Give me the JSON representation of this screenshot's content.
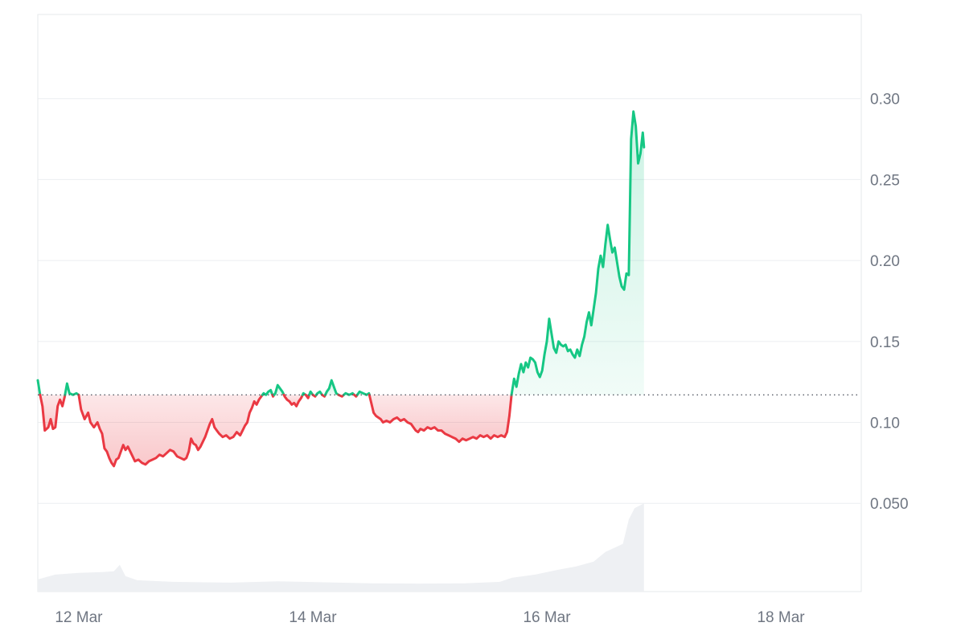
{
  "chart_data": {
    "type": "line",
    "baseline": 0.117,
    "colors": {
      "above": "#16c784",
      "below": "#ea3943",
      "volume": "#eef0f3"
    },
    "y_axis": {
      "ticks": [
        {
          "value": 0.05,
          "label": "0.050"
        },
        {
          "value": 0.1,
          "label": "0.10"
        },
        {
          "value": 0.15,
          "label": "0.15"
        },
        {
          "value": 0.2,
          "label": "0.20"
        },
        {
          "value": 0.25,
          "label": "0.25"
        },
        {
          "value": 0.3,
          "label": "0.30"
        }
      ]
    },
    "x_axis": {
      "ticks": [
        {
          "value": 11.7,
          "label": "12 Mar"
        },
        {
          "value": 13.7,
          "label": "14 Mar"
        },
        {
          "value": 15.7,
          "label": "16 Mar"
        },
        {
          "value": 17.7,
          "label": "18 Mar"
        }
      ]
    },
    "xlim": [
      11.35,
      18.38
    ],
    "ylim": [
      -0.0045,
      0.352
    ],
    "series": [
      {
        "points": [
          [
            11.35,
            0.126
          ],
          [
            11.37,
            0.117
          ],
          [
            11.39,
            0.11
          ],
          [
            11.41,
            0.095
          ],
          [
            11.44,
            0.097
          ],
          [
            11.46,
            0.102
          ],
          [
            11.48,
            0.096
          ],
          [
            11.5,
            0.097
          ],
          [
            11.52,
            0.11
          ],
          [
            11.54,
            0.114
          ],
          [
            11.56,
            0.11
          ],
          [
            11.58,
            0.116
          ],
          [
            11.6,
            0.124
          ],
          [
            11.62,
            0.118
          ],
          [
            11.65,
            0.117
          ],
          [
            11.68,
            0.118
          ],
          [
            11.7,
            0.117
          ],
          [
            11.72,
            0.108
          ],
          [
            11.75,
            0.102
          ],
          [
            11.78,
            0.106
          ],
          [
            11.8,
            0.1
          ],
          [
            11.83,
            0.097
          ],
          [
            11.86,
            0.1
          ],
          [
            11.88,
            0.096
          ],
          [
            11.9,
            0.093
          ],
          [
            11.92,
            0.084
          ],
          [
            11.94,
            0.082
          ],
          [
            11.96,
            0.078
          ],
          [
            11.98,
            0.075
          ],
          [
            12.0,
            0.073
          ],
          [
            12.02,
            0.077
          ],
          [
            12.04,
            0.078
          ],
          [
            12.06,
            0.082
          ],
          [
            12.08,
            0.086
          ],
          [
            12.1,
            0.083
          ],
          [
            12.12,
            0.085
          ],
          [
            12.14,
            0.082
          ],
          [
            12.16,
            0.079
          ],
          [
            12.18,
            0.076
          ],
          [
            12.21,
            0.077
          ],
          [
            12.24,
            0.075
          ],
          [
            12.27,
            0.074
          ],
          [
            12.3,
            0.076
          ],
          [
            12.33,
            0.077
          ],
          [
            12.36,
            0.078
          ],
          [
            12.39,
            0.08
          ],
          [
            12.42,
            0.079
          ],
          [
            12.45,
            0.081
          ],
          [
            12.48,
            0.083
          ],
          [
            12.51,
            0.082
          ],
          [
            12.54,
            0.079
          ],
          [
            12.57,
            0.078
          ],
          [
            12.6,
            0.077
          ],
          [
            12.62,
            0.078
          ],
          [
            12.64,
            0.082
          ],
          [
            12.66,
            0.09
          ],
          [
            12.68,
            0.087
          ],
          [
            12.7,
            0.086
          ],
          [
            12.72,
            0.083
          ],
          [
            12.74,
            0.085
          ],
          [
            12.76,
            0.088
          ],
          [
            12.78,
            0.091
          ],
          [
            12.8,
            0.095
          ],
          [
            12.82,
            0.099
          ],
          [
            12.84,
            0.102
          ],
          [
            12.86,
            0.097
          ],
          [
            12.88,
            0.095
          ],
          [
            12.9,
            0.093
          ],
          [
            12.93,
            0.091
          ],
          [
            12.96,
            0.092
          ],
          [
            12.99,
            0.09
          ],
          [
            13.02,
            0.091
          ],
          [
            13.05,
            0.094
          ],
          [
            13.08,
            0.092
          ],
          [
            13.1,
            0.095
          ],
          [
            13.12,
            0.098
          ],
          [
            13.14,
            0.1
          ],
          [
            13.16,
            0.106
          ],
          [
            13.18,
            0.109
          ],
          [
            13.2,
            0.113
          ],
          [
            13.22,
            0.111
          ],
          [
            13.24,
            0.114
          ],
          [
            13.26,
            0.116
          ],
          [
            13.28,
            0.118
          ],
          [
            13.3,
            0.117
          ],
          [
            13.32,
            0.119
          ],
          [
            13.34,
            0.12
          ],
          [
            13.36,
            0.116
          ],
          [
            13.38,
            0.118
          ],
          [
            13.4,
            0.123
          ],
          [
            13.42,
            0.121
          ],
          [
            13.44,
            0.119
          ],
          [
            13.46,
            0.116
          ],
          [
            13.48,
            0.114
          ],
          [
            13.5,
            0.113
          ],
          [
            13.52,
            0.111
          ],
          [
            13.54,
            0.112
          ],
          [
            13.56,
            0.11
          ],
          [
            13.58,
            0.113
          ],
          [
            13.6,
            0.115
          ],
          [
            13.62,
            0.118
          ],
          [
            13.64,
            0.117
          ],
          [
            13.66,
            0.115
          ],
          [
            13.68,
            0.119
          ],
          [
            13.7,
            0.117
          ],
          [
            13.72,
            0.116
          ],
          [
            13.74,
            0.118
          ],
          [
            13.76,
            0.119
          ],
          [
            13.78,
            0.117
          ],
          [
            13.8,
            0.116
          ],
          [
            13.82,
            0.119
          ],
          [
            13.84,
            0.121
          ],
          [
            13.86,
            0.126
          ],
          [
            13.88,
            0.122
          ],
          [
            13.9,
            0.118
          ],
          [
            13.92,
            0.117
          ],
          [
            13.95,
            0.116
          ],
          [
            13.98,
            0.118
          ],
          [
            14.01,
            0.117
          ],
          [
            14.04,
            0.118
          ],
          [
            14.07,
            0.116
          ],
          [
            14.1,
            0.119
          ],
          [
            14.13,
            0.118
          ],
          [
            14.16,
            0.117
          ],
          [
            14.18,
            0.118
          ],
          [
            14.2,
            0.112
          ],
          [
            14.22,
            0.106
          ],
          [
            14.24,
            0.104
          ],
          [
            14.26,
            0.103
          ],
          [
            14.28,
            0.102
          ],
          [
            14.3,
            0.1
          ],
          [
            14.33,
            0.101
          ],
          [
            14.36,
            0.1
          ],
          [
            14.39,
            0.102
          ],
          [
            14.42,
            0.103
          ],
          [
            14.45,
            0.101
          ],
          [
            14.48,
            0.102
          ],
          [
            14.51,
            0.1
          ],
          [
            14.54,
            0.099
          ],
          [
            14.56,
            0.097
          ],
          [
            14.58,
            0.095
          ],
          [
            14.6,
            0.094
          ],
          [
            14.62,
            0.096
          ],
          [
            14.65,
            0.095
          ],
          [
            14.68,
            0.097
          ],
          [
            14.71,
            0.096
          ],
          [
            14.74,
            0.097
          ],
          [
            14.77,
            0.095
          ],
          [
            14.8,
            0.095
          ],
          [
            14.83,
            0.093
          ],
          [
            14.86,
            0.092
          ],
          [
            14.89,
            0.091
          ],
          [
            14.92,
            0.09
          ],
          [
            14.95,
            0.088
          ],
          [
            14.98,
            0.09
          ],
          [
            15.01,
            0.089
          ],
          [
            15.04,
            0.09
          ],
          [
            15.07,
            0.091
          ],
          [
            15.1,
            0.09
          ],
          [
            15.13,
            0.092
          ],
          [
            15.16,
            0.091
          ],
          [
            15.19,
            0.092
          ],
          [
            15.22,
            0.09
          ],
          [
            15.25,
            0.092
          ],
          [
            15.28,
            0.091
          ],
          [
            15.31,
            0.092
          ],
          [
            15.34,
            0.091
          ],
          [
            15.36,
            0.094
          ],
          [
            15.38,
            0.104
          ],
          [
            15.4,
            0.118
          ],
          [
            15.42,
            0.127
          ],
          [
            15.44,
            0.122
          ],
          [
            15.46,
            0.13
          ],
          [
            15.48,
            0.136
          ],
          [
            15.5,
            0.131
          ],
          [
            15.52,
            0.137
          ],
          [
            15.54,
            0.134
          ],
          [
            15.56,
            0.14
          ],
          [
            15.58,
            0.139
          ],
          [
            15.6,
            0.137
          ],
          [
            15.62,
            0.131
          ],
          [
            15.64,
            0.128
          ],
          [
            15.66,
            0.132
          ],
          [
            15.68,
            0.142
          ],
          [
            15.7,
            0.15
          ],
          [
            15.72,
            0.164
          ],
          [
            15.74,
            0.155
          ],
          [
            15.76,
            0.146
          ],
          [
            15.78,
            0.143
          ],
          [
            15.8,
            0.15
          ],
          [
            15.82,
            0.148
          ],
          [
            15.84,
            0.147
          ],
          [
            15.86,
            0.148
          ],
          [
            15.88,
            0.144
          ],
          [
            15.9,
            0.145
          ],
          [
            15.92,
            0.142
          ],
          [
            15.94,
            0.14
          ],
          [
            15.96,
            0.145
          ],
          [
            15.98,
            0.141
          ],
          [
            16.0,
            0.148
          ],
          [
            16.02,
            0.153
          ],
          [
            16.04,
            0.162
          ],
          [
            16.06,
            0.168
          ],
          [
            16.08,
            0.16
          ],
          [
            16.1,
            0.17
          ],
          [
            16.12,
            0.18
          ],
          [
            16.14,
            0.195
          ],
          [
            16.16,
            0.203
          ],
          [
            16.18,
            0.196
          ],
          [
            16.2,
            0.21
          ],
          [
            16.22,
            0.222
          ],
          [
            16.24,
            0.213
          ],
          [
            16.26,
            0.205
          ],
          [
            16.28,
            0.208
          ],
          [
            16.3,
            0.199
          ],
          [
            16.32,
            0.19
          ],
          [
            16.34,
            0.184
          ],
          [
            16.36,
            0.182
          ],
          [
            16.38,
            0.192
          ],
          [
            16.4,
            0.191
          ],
          [
            16.42,
            0.275
          ],
          [
            16.44,
            0.292
          ],
          [
            16.46,
            0.283
          ],
          [
            16.48,
            0.26
          ],
          [
            16.5,
            0.266
          ],
          [
            16.52,
            0.279
          ],
          [
            16.53,
            0.27
          ]
        ]
      }
    ],
    "volume": [
      [
        11.35,
        0.003
      ],
      [
        11.5,
        0.006
      ],
      [
        11.7,
        0.007
      ],
      [
        11.9,
        0.0075
      ],
      [
        12.0,
        0.008
      ],
      [
        12.05,
        0.012
      ],
      [
        12.1,
        0.005
      ],
      [
        12.2,
        0.0025
      ],
      [
        12.5,
        0.0015
      ],
      [
        13.0,
        0.001
      ],
      [
        13.4,
        0.0018
      ],
      [
        13.8,
        0.0012
      ],
      [
        14.2,
        0.0006
      ],
      [
        14.6,
        0.0004
      ],
      [
        15.0,
        0.0006
      ],
      [
        15.3,
        0.0015
      ],
      [
        15.4,
        0.004
      ],
      [
        15.6,
        0.006
      ],
      [
        15.8,
        0.009
      ],
      [
        15.95,
        0.011
      ],
      [
        16.1,
        0.014
      ],
      [
        16.2,
        0.02
      ],
      [
        16.35,
        0.025
      ],
      [
        16.4,
        0.04
      ],
      [
        16.45,
        0.047
      ],
      [
        16.53,
        0.05
      ]
    ]
  }
}
